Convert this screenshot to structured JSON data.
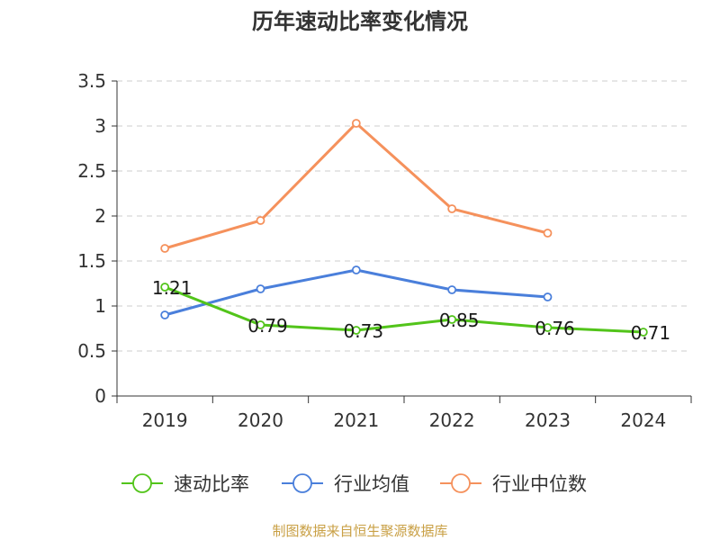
{
  "chart_data": {
    "type": "line",
    "title": "历年速动比率变化情况",
    "categories": [
      "2019",
      "2020",
      "2021",
      "2022",
      "2023",
      "2024"
    ],
    "ylim": [
      0,
      3.5
    ],
    "yticks": [
      "0",
      "0.5",
      "1",
      "1.5",
      "2",
      "2.5",
      "3",
      "3.5"
    ],
    "grid": true,
    "legend_position": "bottom",
    "series": [
      {
        "name": "速动比率",
        "color": "#52c41a",
        "values": [
          1.21,
          0.79,
          0.73,
          0.85,
          0.76,
          0.71
        ],
        "labels": [
          "1.21",
          "0.79",
          "0.73",
          "0.85",
          "0.76",
          "0.71"
        ]
      },
      {
        "name": "行业均值",
        "color": "#4a7fdb",
        "values": [
          0.9,
          1.19,
          1.4,
          1.18,
          1.1,
          null
        ]
      },
      {
        "name": "行业中位数",
        "color": "#f5915c",
        "values": [
          1.64,
          1.95,
          3.03,
          2.08,
          1.81,
          null
        ]
      }
    ]
  },
  "source": "制图数据来自恒生聚源数据库"
}
